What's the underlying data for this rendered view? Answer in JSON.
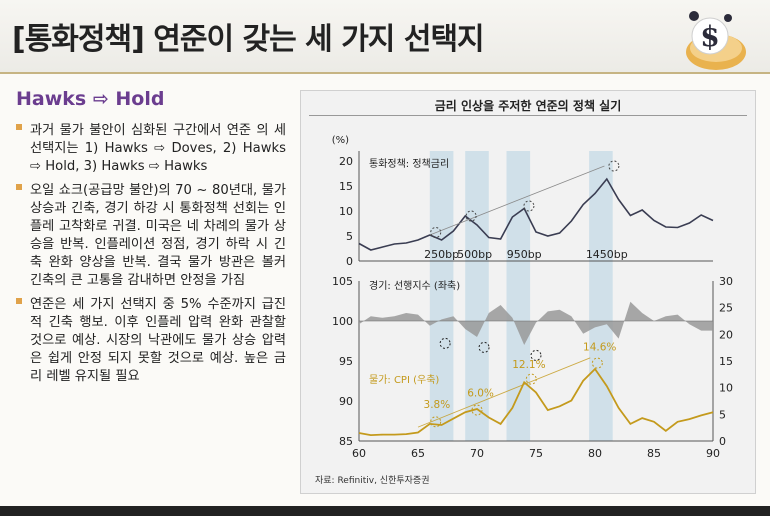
{
  "header": {
    "title": "[통화정책] 연준이 갖는 세 가지 선택지"
  },
  "section": {
    "heading": "Hawks ⇨ Hold"
  },
  "bullets": [
    "과거 물가 불안이 심화된 구간에서 연준 의 세 선택지는 1) Hawks ⇨ Doves, 2) Hawks ⇨ Hold, 3) Hawks ⇨ Hawks",
    "오일 쇼크(공급망 불안)의 70 ~ 80년대, 물가 상승과 긴축, 경기 하강 시 통화정책 선회는 인플레 고착화로 귀결. 미국은 네 차례의 물가 상승을 반복. 인플레이션 정점, 경기 하락 시 긴축 완화 양상을 반복. 결국 물가 방관은 볼커 긴축의 큰 고통을 감내하면 안정을 가짐",
    "연준은 세 가지 선택지 중 5% 수준까지 급진적 긴축 행보. 이후 인플레 압력 완화 관찰할 것으로 예상. 시장의 낙관에도 물가 상승 압력은 쉽게 안정 되지 못할 것으로 예상. 높은 금리 레벨 유지될 필요"
  ],
  "chart": {
    "title": "금리 인상을 주저한 연준의 정책 실기",
    "top_unit": "(%)",
    "top_label": "통화정책: 정책금리",
    "mid_label": "경기: 선행지수 (좌축)",
    "bottom_label": "물가: CPI (우축)",
    "source": "자료: Refinitiv, 신한투자증권",
    "hike_labels": [
      "250bp",
      "500bp",
      "950bp",
      "1450bp"
    ],
    "cpi_peak_labels": [
      "3.8%",
      "6.0%",
      "12.1%",
      "14.6%"
    ],
    "colors": {
      "policy_rate": "#3a3d52",
      "leading_index": "#999999",
      "cpi": "#c49a1c",
      "band": "#c4dae6",
      "trend": "#8a8a8a"
    }
  },
  "chart_data": [
    {
      "type": "line",
      "title": "",
      "ylabel": "(%)",
      "ylim": [
        0,
        20
      ],
      "x_range": [
        60,
        90
      ],
      "yticks": [
        0,
        5,
        10,
        15,
        20
      ],
      "series": [
        {
          "name": "통화정책: 정책금리",
          "x": [
            60,
            61,
            62,
            63,
            64,
            65,
            66,
            67,
            68,
            69,
            70,
            71,
            72,
            73,
            74,
            75,
            76,
            77,
            78,
            79,
            80,
            81,
            82,
            83,
            84,
            85,
            86,
            87,
            88,
            89,
            90
          ],
          "y": [
            3.5,
            2.2,
            2.8,
            3.4,
            3.6,
            4.2,
            5.2,
            4.2,
            6.0,
            9.0,
            7.2,
            4.7,
            4.4,
            8.8,
            10.5,
            5.8,
            5.0,
            5.6,
            8.0,
            11.3,
            13.5,
            16.4,
            12.3,
            9.1,
            10.2,
            8.1,
            6.8,
            6.7,
            7.6,
            9.2,
            8.1
          ]
        }
      ],
      "hike_annotations": [
        "250bp",
        "500bp",
        "950bp",
        "1450bp"
      ]
    },
    {
      "type": "line",
      "ylim": [
        85,
        105
      ],
      "x_range": [
        60,
        90
      ],
      "yticks": [
        85,
        90,
        95,
        100,
        105
      ],
      "series": [
        {
          "name": "경기: 선행지수 (좌축)",
          "x": [
            60,
            61,
            62,
            63,
            64,
            65,
            66,
            67,
            68,
            69,
            70,
            71,
            72,
            73,
            74,
            75,
            76,
            77,
            78,
            79,
            80,
            81,
            82,
            83,
            84,
            85,
            86,
            87,
            88,
            89,
            90
          ],
          "y": [
            99.6,
            100.6,
            100.4,
            100.6,
            101.0,
            100.8,
            99.4,
            100.2,
            100.6,
            99.0,
            98.0,
            101.0,
            102.0,
            100.4,
            97.0,
            99.8,
            101.2,
            101.4,
            100.6,
            98.4,
            99.2,
            99.6,
            97.8,
            102.4,
            101.0,
            100.0,
            100.6,
            100.8,
            99.6,
            98.8,
            98.8
          ]
        }
      ]
    },
    {
      "type": "line",
      "ylim": [
        0,
        30
      ],
      "x_range": [
        60,
        90
      ],
      "yticks": [
        0,
        5,
        10,
        15,
        20,
        25,
        30
      ],
      "series": [
        {
          "name": "물가: CPI (우축)",
          "x": [
            60,
            61,
            62,
            63,
            64,
            65,
            66,
            67,
            68,
            69,
            70,
            71,
            72,
            73,
            74,
            75,
            76,
            77,
            78,
            79,
            80,
            81,
            82,
            83,
            84,
            85,
            86,
            87,
            88,
            89,
            90
          ],
          "y": [
            1.5,
            1.1,
            1.2,
            1.2,
            1.3,
            1.6,
            3.2,
            3.0,
            4.2,
            5.4,
            6.0,
            4.4,
            3.2,
            6.2,
            11.0,
            9.1,
            5.8,
            6.5,
            7.6,
            11.3,
            13.5,
            10.3,
            6.2,
            3.2,
            4.3,
            3.6,
            1.9,
            3.6,
            4.1,
            4.8,
            5.4
          ]
        }
      ],
      "peak_annotations": [
        "3.8%",
        "6.0%",
        "12.1%",
        "14.6%"
      ]
    }
  ],
  "axes": {
    "x_ticks": [
      "60",
      "65",
      "70",
      "75",
      "80",
      "85",
      "90"
    ],
    "top_y_ticks": [
      "0",
      "5",
      "10",
      "15",
      "20"
    ],
    "left_y_ticks": [
      "85",
      "90",
      "95",
      "100",
      "105"
    ],
    "right_y_ticks": [
      "0",
      "5",
      "10",
      "15",
      "20",
      "25",
      "30"
    ]
  }
}
